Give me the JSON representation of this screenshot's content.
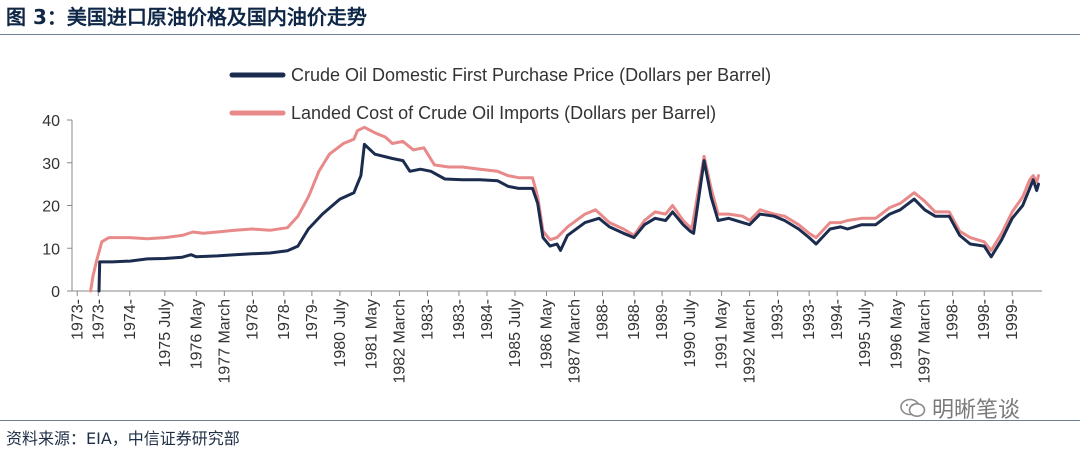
{
  "header": {
    "title": "图 3：美国进口原油价格及国内油价走势"
  },
  "footer": {
    "source": "资料来源：EIA，中信证券研究部"
  },
  "watermark": {
    "text": "明晰笔谈"
  },
  "chart_data": {
    "type": "line",
    "ylim": [
      0,
      40
    ],
    "yticks": [
      0,
      10,
      20,
      30,
      40
    ],
    "xticks": [
      {
        "t": 1973.0,
        "label": "1973-"
      },
      {
        "t": 1973.6,
        "label": "1973-"
      },
      {
        "t": 1974.5,
        "label": "1974-"
      },
      {
        "t": 1975.5,
        "label": "1975 July"
      },
      {
        "t": 1976.4,
        "label": "1976 May"
      },
      {
        "t": 1977.2,
        "label": "1977 March"
      },
      {
        "t": 1978.0,
        "label": "1978-"
      },
      {
        "t": 1978.9,
        "label": "1978-"
      },
      {
        "t": 1979.7,
        "label": "1979-"
      },
      {
        "t": 1980.5,
        "label": "1980 July"
      },
      {
        "t": 1981.4,
        "label": "1981 May"
      },
      {
        "t": 1982.2,
        "label": "1982 March"
      },
      {
        "t": 1983.0,
        "label": "1983-"
      },
      {
        "t": 1983.9,
        "label": "1983-"
      },
      {
        "t": 1984.7,
        "label": "1984-"
      },
      {
        "t": 1985.5,
        "label": "1985 July"
      },
      {
        "t": 1986.4,
        "label": "1986 May"
      },
      {
        "t": 1987.2,
        "label": "1987 March"
      },
      {
        "t": 1988.0,
        "label": "1988-"
      },
      {
        "t": 1988.9,
        "label": "1988-"
      },
      {
        "t": 1989.7,
        "label": "1989-"
      },
      {
        "t": 1990.5,
        "label": "1990 July"
      },
      {
        "t": 1991.4,
        "label": "1991 May"
      },
      {
        "t": 1992.2,
        "label": "1992 March"
      },
      {
        "t": 1993.0,
        "label": "1993-"
      },
      {
        "t": 1993.9,
        "label": "1993-"
      },
      {
        "t": 1994.7,
        "label": "1994-"
      },
      {
        "t": 1995.5,
        "label": "1995 July"
      },
      {
        "t": 1996.4,
        "label": "1996 May"
      },
      {
        "t": 1997.2,
        "label": "1997 March"
      },
      {
        "t": 1998.0,
        "label": "1998-"
      },
      {
        "t": 1998.9,
        "label": "1998-"
      },
      {
        "t": 1999.7,
        "label": "1999-"
      }
    ],
    "legend": "top",
    "series": [
      {
        "name": "Crude Oil Domestic First Purchase Price (Dollars per Barrel)",
        "color": "#1b2c4e",
        "points": [
          [
            1973.62,
            0
          ],
          [
            1973.64,
            6.8
          ],
          [
            1974.0,
            6.8
          ],
          [
            1974.5,
            7.0
          ],
          [
            1975.0,
            7.5
          ],
          [
            1975.5,
            7.6
          ],
          [
            1976.0,
            7.9
          ],
          [
            1976.25,
            8.5
          ],
          [
            1976.4,
            8.0
          ],
          [
            1977.0,
            8.2
          ],
          [
            1977.5,
            8.5
          ],
          [
            1978.0,
            8.7
          ],
          [
            1978.5,
            8.9
          ],
          [
            1979.0,
            9.4
          ],
          [
            1979.3,
            10.5
          ],
          [
            1979.6,
            14.5
          ],
          [
            1980.0,
            18.0
          ],
          [
            1980.5,
            21.5
          ],
          [
            1980.9,
            23.0
          ],
          [
            1981.1,
            27.0
          ],
          [
            1981.2,
            34.3
          ],
          [
            1981.5,
            32.0
          ],
          [
            1982.0,
            31.0
          ],
          [
            1982.3,
            30.5
          ],
          [
            1982.5,
            28.0
          ],
          [
            1982.8,
            28.5
          ],
          [
            1983.1,
            28.0
          ],
          [
            1983.5,
            26.2
          ],
          [
            1984.0,
            26.0
          ],
          [
            1984.5,
            26.0
          ],
          [
            1985.0,
            25.8
          ],
          [
            1985.3,
            24.5
          ],
          [
            1985.6,
            24.0
          ],
          [
            1986.0,
            24.0
          ],
          [
            1986.15,
            20.5
          ],
          [
            1986.3,
            12.5
          ],
          [
            1986.5,
            10.5
          ],
          [
            1986.7,
            11.0
          ],
          [
            1986.8,
            9.5
          ],
          [
            1987.0,
            13.0
          ],
          [
            1987.5,
            16.0
          ],
          [
            1987.9,
            17.0
          ],
          [
            1988.2,
            15.0
          ],
          [
            1988.6,
            13.5
          ],
          [
            1988.9,
            12.5
          ],
          [
            1989.2,
            15.5
          ],
          [
            1989.5,
            17.0
          ],
          [
            1989.8,
            16.5
          ],
          [
            1990.0,
            18.5
          ],
          [
            1990.3,
            15.5
          ],
          [
            1990.5,
            14.0
          ],
          [
            1990.6,
            13.5
          ],
          [
            1990.9,
            30.5
          ],
          [
            1991.1,
            22.0
          ],
          [
            1991.3,
            16.5
          ],
          [
            1991.6,
            17.0
          ],
          [
            1992.0,
            16.0
          ],
          [
            1992.2,
            15.5
          ],
          [
            1992.5,
            18.0
          ],
          [
            1992.9,
            17.5
          ],
          [
            1993.2,
            16.5
          ],
          [
            1993.6,
            14.5
          ],
          [
            1993.9,
            12.5
          ],
          [
            1994.1,
            11.0
          ],
          [
            1994.5,
            14.5
          ],
          [
            1994.8,
            15.0
          ],
          [
            1995.0,
            14.5
          ],
          [
            1995.4,
            15.5
          ],
          [
            1995.8,
            15.5
          ],
          [
            1996.2,
            18.0
          ],
          [
            1996.5,
            19.0
          ],
          [
            1996.9,
            21.5
          ],
          [
            1997.2,
            19.0
          ],
          [
            1997.5,
            17.5
          ],
          [
            1997.9,
            17.5
          ],
          [
            1998.2,
            13.0
          ],
          [
            1998.5,
            11.0
          ],
          [
            1998.9,
            10.5
          ],
          [
            1999.1,
            8.0
          ],
          [
            1999.4,
            12.0
          ],
          [
            1999.7,
            17.0
          ],
          [
            2000.0,
            20.0
          ],
          [
            2000.2,
            24.0
          ],
          [
            2000.3,
            26.0
          ],
          [
            2000.4,
            23.5
          ],
          [
            2000.45,
            25.0
          ]
        ]
      },
      {
        "name": "Landed Cost of Crude Oil Imports (Dollars per Barrel)",
        "color": "#e8898a",
        "points": [
          [
            1973.38,
            0
          ],
          [
            1973.45,
            3.5
          ],
          [
            1973.55,
            7.0
          ],
          [
            1973.7,
            11.5
          ],
          [
            1973.9,
            12.5
          ],
          [
            1974.5,
            12.5
          ],
          [
            1975.0,
            12.2
          ],
          [
            1975.5,
            12.5
          ],
          [
            1976.0,
            13.0
          ],
          [
            1976.3,
            13.8
          ],
          [
            1976.6,
            13.5
          ],
          [
            1977.0,
            13.8
          ],
          [
            1977.5,
            14.2
          ],
          [
            1978.0,
            14.5
          ],
          [
            1978.5,
            14.2
          ],
          [
            1979.0,
            14.8
          ],
          [
            1979.3,
            17.5
          ],
          [
            1979.6,
            22.0
          ],
          [
            1979.9,
            28.0
          ],
          [
            1980.2,
            32.0
          ],
          [
            1980.6,
            34.5
          ],
          [
            1980.9,
            35.5
          ],
          [
            1981.0,
            37.5
          ],
          [
            1981.2,
            38.3
          ],
          [
            1981.5,
            37.0
          ],
          [
            1981.8,
            36.0
          ],
          [
            1982.0,
            34.5
          ],
          [
            1982.3,
            35.0
          ],
          [
            1982.6,
            33.0
          ],
          [
            1982.9,
            33.5
          ],
          [
            1983.2,
            29.5
          ],
          [
            1983.6,
            29.0
          ],
          [
            1984.0,
            29.0
          ],
          [
            1984.5,
            28.5
          ],
          [
            1985.0,
            28.0
          ],
          [
            1985.3,
            27.0
          ],
          [
            1985.6,
            26.5
          ],
          [
            1986.0,
            26.5
          ],
          [
            1986.15,
            22.0
          ],
          [
            1986.3,
            14.0
          ],
          [
            1986.5,
            12.0
          ],
          [
            1986.7,
            12.5
          ],
          [
            1987.0,
            15.0
          ],
          [
            1987.5,
            18.0
          ],
          [
            1987.8,
            19.0
          ],
          [
            1988.2,
            16.0
          ],
          [
            1988.6,
            14.5
          ],
          [
            1988.9,
            13.0
          ],
          [
            1989.2,
            16.5
          ],
          [
            1989.5,
            18.5
          ],
          [
            1989.8,
            18.0
          ],
          [
            1990.0,
            20.0
          ],
          [
            1990.3,
            16.5
          ],
          [
            1990.55,
            14.5
          ],
          [
            1990.9,
            31.5
          ],
          [
            1991.1,
            24.0
          ],
          [
            1991.3,
            18.0
          ],
          [
            1991.6,
            18.0
          ],
          [
            1992.0,
            17.5
          ],
          [
            1992.2,
            16.5
          ],
          [
            1992.5,
            19.0
          ],
          [
            1992.9,
            18.0
          ],
          [
            1993.2,
            17.5
          ],
          [
            1993.6,
            15.5
          ],
          [
            1993.9,
            13.5
          ],
          [
            1994.1,
            12.5
          ],
          [
            1994.5,
            16.0
          ],
          [
            1994.8,
            16.0
          ],
          [
            1995.0,
            16.5
          ],
          [
            1995.4,
            17.0
          ],
          [
            1995.8,
            17.0
          ],
          [
            1996.2,
            19.5
          ],
          [
            1996.5,
            20.5
          ],
          [
            1996.9,
            23.0
          ],
          [
            1997.2,
            21.0
          ],
          [
            1997.5,
            18.5
          ],
          [
            1997.9,
            18.5
          ],
          [
            1998.2,
            14.0
          ],
          [
            1998.5,
            12.5
          ],
          [
            1998.9,
            11.5
          ],
          [
            1999.1,
            9.5
          ],
          [
            1999.4,
            13.5
          ],
          [
            1999.7,
            18.5
          ],
          [
            2000.0,
            22.0
          ],
          [
            2000.2,
            26.0
          ],
          [
            2000.3,
            27.0
          ],
          [
            2000.4,
            25.5
          ],
          [
            2000.45,
            27.0
          ]
        ]
      }
    ]
  }
}
